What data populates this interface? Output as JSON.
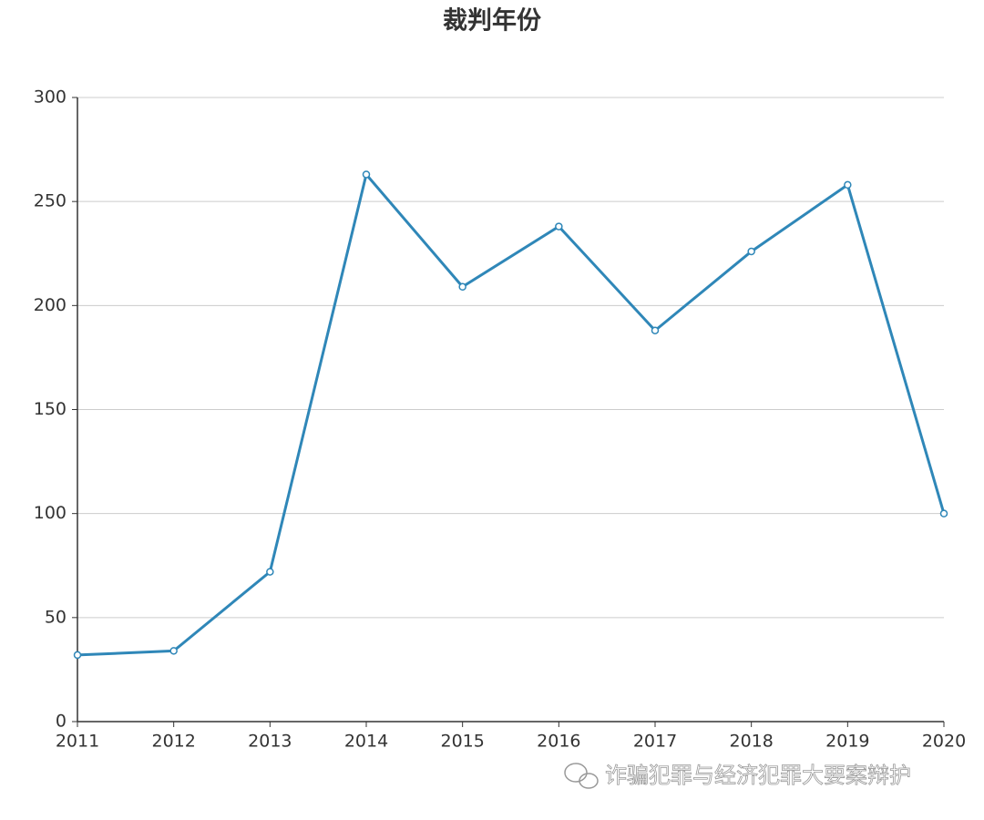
{
  "chart_data": {
    "type": "line",
    "title": "裁判年份",
    "x": [
      2011,
      2012,
      2013,
      2014,
      2015,
      2016,
      2017,
      2018,
      2019,
      2020
    ],
    "series": [
      {
        "name": "裁判年份",
        "color": "#2f87b8",
        "values": [
          32,
          34,
          72,
          263,
          209,
          238,
          188,
          226,
          258,
          100
        ]
      }
    ],
    "xlim": [
      2011,
      2020
    ],
    "xticks": [
      2011,
      2012,
      2013,
      2014,
      2015,
      2016,
      2017,
      2018,
      2019,
      2020
    ],
    "ylim": [
      0,
      300
    ],
    "yticks": [
      0,
      50,
      100,
      150,
      200,
      250,
      300
    ],
    "grid": true
  },
  "watermark": "诈骗犯罪与经济犯罪大要案辩护"
}
